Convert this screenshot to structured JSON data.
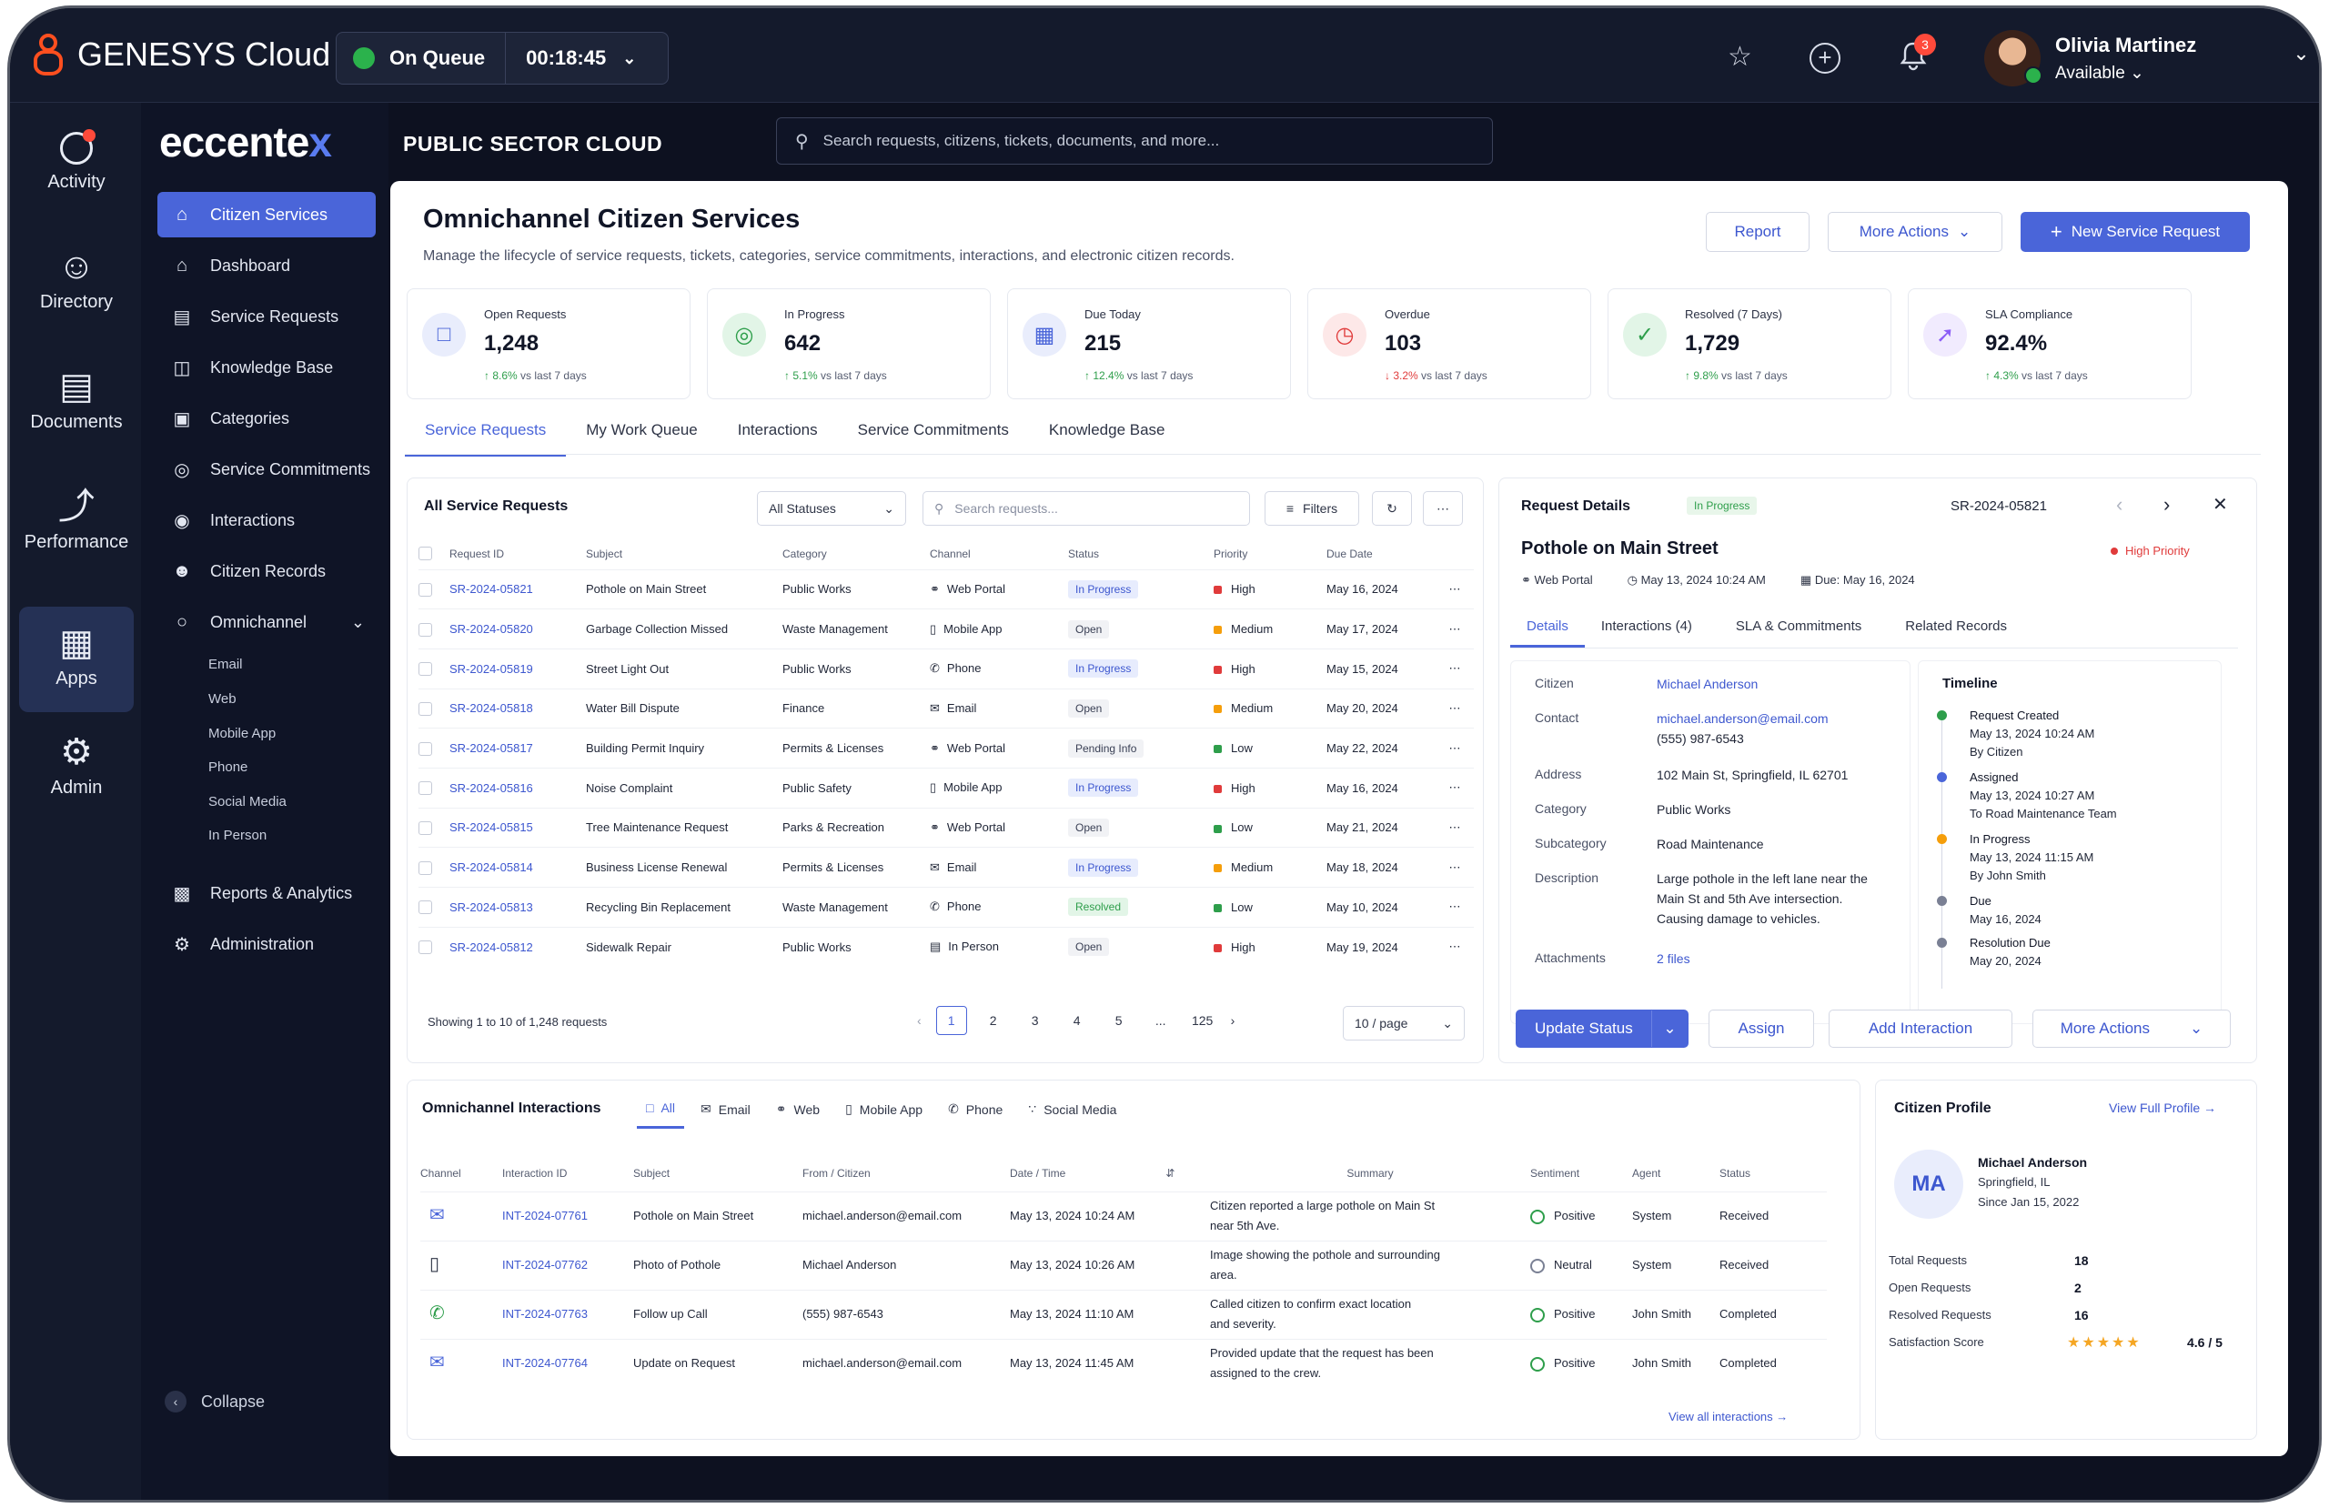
{
  "topbar": {
    "brand": "GENESYS Cloud",
    "queue_status": "On Queue",
    "timer": "00:18:45",
    "notif_count": "3",
    "user_name": "Olivia Martinez",
    "user_status": "Available"
  },
  "rail": [
    {
      "label": "Activity",
      "icon": "activity-icon"
    },
    {
      "label": "Directory",
      "icon": "directory-icon"
    },
    {
      "label": "Documents",
      "icon": "documents-icon"
    },
    {
      "label": "Performance",
      "icon": "performance-icon"
    },
    {
      "label": "Apps",
      "icon": "apps-icon"
    },
    {
      "label": "Admin",
      "icon": "admin-icon"
    }
  ],
  "sidebar": {
    "brand_main": "eccente",
    "brand_x": "x",
    "items": [
      {
        "label": "Citizen Services"
      },
      {
        "label": "Dashboard"
      },
      {
        "label": "Service Requests"
      },
      {
        "label": "Knowledge Base"
      },
      {
        "label": "Categories"
      },
      {
        "label": "Service Commitments"
      },
      {
        "label": "Interactions"
      },
      {
        "label": "Citizen Records"
      },
      {
        "label": "Omnichannel"
      }
    ],
    "sub_items": [
      "Email",
      "Web",
      "Mobile App",
      "Phone",
      "Social Media",
      "In Person"
    ],
    "bottom_items": [
      {
        "label": "Reports & Analytics"
      },
      {
        "label": "Administration"
      }
    ],
    "collapse": "Collapse"
  },
  "header": {
    "title": "PUBLIC SECTOR CLOUD",
    "search_placeholder": "Search requests, citizens, tickets, documents, and more..."
  },
  "page": {
    "title": "Omnichannel Citizen Services",
    "subtitle": "Manage the lifecycle of service requests, tickets, categories, service commitments, interactions, and electronic citizen records.",
    "report": "Report",
    "more_actions": "More Actions",
    "new_request": "New Service Request"
  },
  "kpis": [
    {
      "label": "Open Requests",
      "value": "1,248",
      "delta": "8.6%",
      "dir": "up",
      "note": "vs last 7 days",
      "color": "#4a65d9",
      "bg": "#e9edfc"
    },
    {
      "label": "In Progress",
      "value": "642",
      "delta": "5.1%",
      "dir": "up",
      "note": "vs last 7 days",
      "color": "#2e9e4b",
      "bg": "#e2f5e7"
    },
    {
      "label": "Due Today",
      "value": "215",
      "delta": "12.4%",
      "dir": "up",
      "note": "vs last 7 days",
      "color": "#4a65d9",
      "bg": "#e9edfc"
    },
    {
      "label": "Overdue",
      "value": "103",
      "delta": "3.2%",
      "dir": "down",
      "note": "vs last 7 days",
      "color": "#e03b3b",
      "bg": "#fde8e8"
    },
    {
      "label": "Resolved (7 Days)",
      "value": "1,729",
      "delta": "9.8%",
      "dir": "up",
      "note": "vs last 7 days",
      "color": "#2e9e4b",
      "bg": "#e2f5e7"
    },
    {
      "label": "SLA Compliance",
      "value": "92.4%",
      "delta": "4.3%",
      "dir": "up",
      "note": "vs last 7 days",
      "color": "#8b5cf6",
      "bg": "#f1ebfe"
    }
  ],
  "tabs": [
    "Service Requests",
    "My Work Queue",
    "Interactions",
    "Service Commitments",
    "Knowledge Base"
  ],
  "requests": {
    "title": "All Service Requests",
    "status_filter": "All Statuses",
    "search_placeholder": "Search requests...",
    "filters": "Filters",
    "columns": [
      "Request ID",
      "Subject",
      "Category",
      "Channel",
      "Status",
      "Priority",
      "Due Date"
    ],
    "rows": [
      {
        "id": "SR-2024-05821",
        "subject": "Pothole on Main Street",
        "category": "Public Works",
        "channel": "Web Portal",
        "status": "In Progress",
        "priority": "High",
        "due": "May 16, 2024"
      },
      {
        "id": "SR-2024-05820",
        "subject": "Garbage Collection Missed",
        "category": "Waste Management",
        "channel": "Mobile App",
        "status": "Open",
        "priority": "Medium",
        "due": "May 17, 2024"
      },
      {
        "id": "SR-2024-05819",
        "subject": "Street Light Out",
        "category": "Public Works",
        "channel": "Phone",
        "status": "In Progress",
        "priority": "High",
        "due": "May 15, 2024"
      },
      {
        "id": "SR-2024-05818",
        "subject": "Water Bill Dispute",
        "category": "Finance",
        "channel": "Email",
        "status": "Open",
        "priority": "Medium",
        "due": "May 20, 2024"
      },
      {
        "id": "SR-2024-05817",
        "subject": "Building Permit Inquiry",
        "category": "Permits & Licenses",
        "channel": "Web Portal",
        "status": "Pending Info",
        "priority": "Low",
        "due": "May 22, 2024"
      },
      {
        "id": "SR-2024-05816",
        "subject": "Noise Complaint",
        "category": "Public Safety",
        "channel": "Mobile App",
        "status": "In Progress",
        "priority": "High",
        "due": "May 16, 2024"
      },
      {
        "id": "SR-2024-05815",
        "subject": "Tree Maintenance Request",
        "category": "Parks & Recreation",
        "channel": "Web Portal",
        "status": "Open",
        "priority": "Low",
        "due": "May 21, 2024"
      },
      {
        "id": "SR-2024-05814",
        "subject": "Business License Renewal",
        "category": "Permits & Licenses",
        "channel": "Email",
        "status": "In Progress",
        "priority": "Medium",
        "due": "May 18, 2024"
      },
      {
        "id": "SR-2024-05813",
        "subject": "Recycling Bin Replacement",
        "category": "Waste Management",
        "channel": "Phone",
        "status": "Resolved",
        "priority": "Low",
        "due": "May 10, 2024"
      },
      {
        "id": "SR-2024-05812",
        "subject": "Sidewalk Repair",
        "category": "Public Works",
        "channel": "In Person",
        "status": "Open",
        "priority": "High",
        "due": "May 19, 2024"
      }
    ],
    "showing": "Showing 1 to 10 of 1,248 requests",
    "pages": [
      "1",
      "2",
      "3",
      "4",
      "5",
      "...",
      "125"
    ],
    "per_page": "10 / page"
  },
  "details": {
    "title": "Request Details",
    "status": "In Progress",
    "id": "SR-2024-05821",
    "subject": "Pothole on Main Street",
    "priority": "High Priority",
    "channel": "Web Portal",
    "created": "May 13, 2024 10:24 AM",
    "due": "Due: May 16, 2024",
    "tabs": [
      "Details",
      "Interactions (4)",
      "SLA & Commitments",
      "Related Records"
    ],
    "fields": {
      "citizen_k": "Citizen",
      "citizen": "Michael Anderson",
      "contact_k": "Contact",
      "email": "michael.anderson@email.com",
      "phone": "(555) 987-6543",
      "address_k": "Address",
      "address": "102 Main St, Springfield, IL 62701",
      "category_k": "Category",
      "category": "Public Works",
      "subcategory_k": "Subcategory",
      "subcategory": "Road Maintenance",
      "description_k": "Description",
      "description_1": "Large pothole in the left lane near the",
      "description_2": "Main St and 5th Ave intersection.",
      "description_3": "Causing damage to vehicles.",
      "attachments_k": "Attachments",
      "attachments": "2 files"
    },
    "timeline_title": "Timeline",
    "timeline": [
      {
        "title": "Request Created",
        "l1": "May 13, 2024 10:24 AM",
        "l2": "By Citizen",
        "color": "#2e9e4b"
      },
      {
        "title": "Assigned",
        "l1": "May 13, 2024 10:27 AM",
        "l2": "To Road Maintenance Team",
        "color": "#4a65d9"
      },
      {
        "title": "In Progress",
        "l1": "May 13, 2024 11:15 AM",
        "l2": "By John Smith",
        "color": "#f59e0b"
      },
      {
        "title": "Due",
        "l1": "May 16, 2024",
        "l2": "",
        "color": "#7a8094"
      },
      {
        "title": "Resolution Due",
        "l1": "May 20, 2024",
        "l2": "",
        "color": "#7a8094"
      }
    ],
    "update_status": "Update Status",
    "assign": "Assign",
    "add_interaction": "Add Interaction",
    "more_actions": "More Actions"
  },
  "interactions": {
    "title": "Omnichannel Interactions",
    "filters": [
      "All",
      "Email",
      "Web",
      "Mobile App",
      "Phone",
      "Social Media"
    ],
    "columns": [
      "Channel",
      "Interaction ID",
      "Subject",
      "From / Citizen",
      "Date / Time",
      "Summary",
      "Sentiment",
      "Agent",
      "Status"
    ],
    "rows": [
      {
        "ch": "email-icon",
        "id": "INT-2024-07761",
        "subject": "Pothole on Main Street",
        "from": "michael.anderson@email.com",
        "date": "May 13, 2024 10:24 AM",
        "s1": "Citizen reported a large pothole on Main St",
        "s2": "near 5th Ave.",
        "sentiment": "Positive",
        "agent": "System",
        "status": "Received"
      },
      {
        "ch": "mobile-icon",
        "id": "INT-2024-07762",
        "subject": "Photo of Pothole",
        "from": "Michael Anderson",
        "date": "May 13, 2024 10:26 AM",
        "s1": "Image showing the pothole and surrounding",
        "s2": "area.",
        "sentiment": "Neutral",
        "agent": "System",
        "status": "Received"
      },
      {
        "ch": "phone-icon",
        "id": "INT-2024-07763",
        "subject": "Follow up Call",
        "from": "(555) 987-6543",
        "date": "May 13, 2024 11:10 AM",
        "s1": "Called citizen to confirm exact location",
        "s2": "and severity.",
        "sentiment": "Positive",
        "agent": "John Smith",
        "status": "Completed"
      },
      {
        "ch": "email-icon",
        "id": "INT-2024-07764",
        "subject": "Update on Request",
        "from": "michael.anderson@email.com",
        "date": "May 13, 2024 11:45 AM",
        "s1": "Provided update that the request has been",
        "s2": "assigned to the crew.",
        "sentiment": "Positive",
        "agent": "John Smith",
        "status": "Completed"
      }
    ],
    "view_all": "View all interactions"
  },
  "profile": {
    "title": "Citizen Profile",
    "view_full": "View Full Profile",
    "initials": "MA",
    "name": "Michael Anderson",
    "city": "Springfield, IL",
    "since": "Since Jan 15, 2022",
    "stats": [
      {
        "k": "Total Requests",
        "v": "18"
      },
      {
        "k": "Open Requests",
        "v": "2"
      },
      {
        "k": "Resolved Requests",
        "v": "16"
      },
      {
        "k": "Satisfaction Score",
        "v": "4.6 / 5"
      }
    ],
    "rating": 4.6
  },
  "colors": {
    "accent": "#4a65d9",
    "nav_bg": "#0f1426",
    "bar_bg": "#141a2c",
    "success": "#2e9e4b",
    "danger": "#e03b3b"
  }
}
